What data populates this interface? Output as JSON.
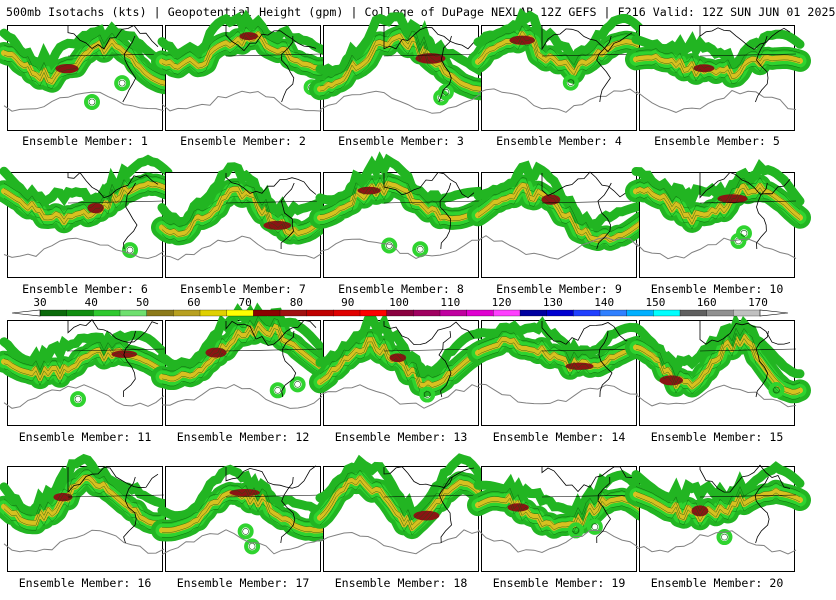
{
  "header": {
    "title": "500mb Isotachs (kts) | Geopotential Height (gpm) | College of DuPage NEXLAB   12Z GEFS | F216 Valid: 12Z SUN JUN 01 2025"
  },
  "panels": [
    {
      "label": "Ensemble Member: 1"
    },
    {
      "label": "Ensemble Member: 2"
    },
    {
      "label": "Ensemble Member: 3"
    },
    {
      "label": "Ensemble Member: 4"
    },
    {
      "label": "Ensemble Member: 5"
    },
    {
      "label": "Ensemble Member: 6"
    },
    {
      "label": "Ensemble Member: 7"
    },
    {
      "label": "Ensemble Member: 8"
    },
    {
      "label": "Ensemble Member: 9"
    },
    {
      "label": "Ensemble Member: 10"
    },
    {
      "label": "Ensemble Member: 11"
    },
    {
      "label": "Ensemble Member: 12"
    },
    {
      "label": "Ensemble Member: 13"
    },
    {
      "label": "Ensemble Member: 14"
    },
    {
      "label": "Ensemble Member: 15"
    },
    {
      "label": "Ensemble Member: 16"
    },
    {
      "label": "Ensemble Member: 17"
    },
    {
      "label": "Ensemble Member: 18"
    },
    {
      "label": "Ensemble Member: 19"
    },
    {
      "label": "Ensemble Member: 20"
    }
  ],
  "colorbar": {
    "ticks": [
      "30",
      "40",
      "50",
      "60",
      "70",
      "80",
      "90",
      "100",
      "110",
      "120",
      "130",
      "140",
      "150",
      "160",
      "170"
    ],
    "colors": [
      "#0b6b0b",
      "#118f11",
      "#2fc92f",
      "#6fe06f",
      "#8c7a1a",
      "#b8a020",
      "#e0d000",
      "#ffff00",
      "#8b0000",
      "#a01010",
      "#c00000",
      "#e00000",
      "#ff0000",
      "#8b0040",
      "#a00060",
      "#c000a0",
      "#e000d0",
      "#ff40ff",
      "#0000a0",
      "#0000d0",
      "#2040ff",
      "#3080ff",
      "#00b0ff",
      "#00ffff",
      "#606060",
      "#909090",
      "#c0c0c0"
    ]
  },
  "legend": {
    "jet_colors": {
      "weak": "#22b522",
      "moderate": "#2fd32f",
      "strong": "#d8c020",
      "core": "#8b1414"
    },
    "height_contour_color": "#808080",
    "coastline_color": "#000000"
  }
}
